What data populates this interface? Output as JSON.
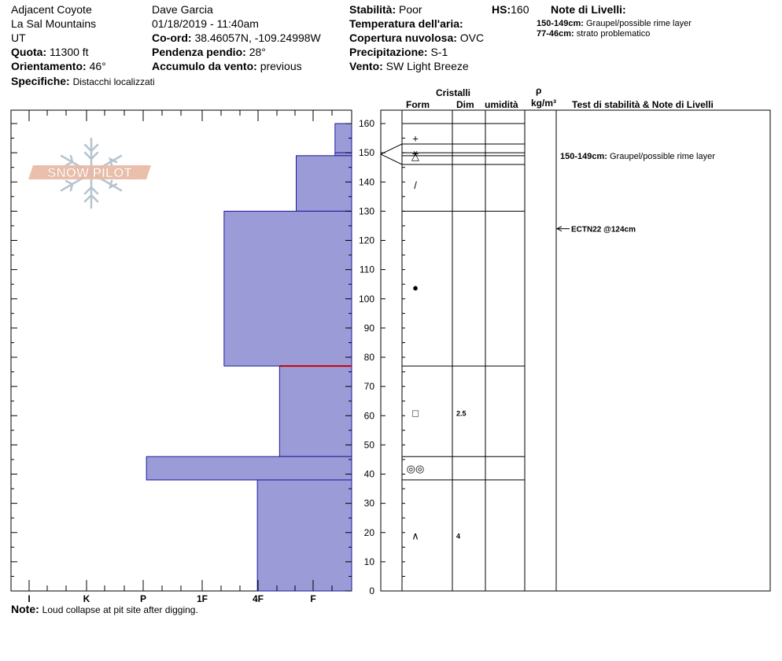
{
  "header": {
    "location": "Adjacent Coyote",
    "range": "La Sal Mountains",
    "state": "UT",
    "elevation_label": "Quota:",
    "elevation_value": "11300 ft",
    "aspect_label": "Orientamento:",
    "aspect_value": "46°",
    "specifics_label": "Specifiche:",
    "specifics_value": "Distacchi localizzati",
    "observer": "Dave Garcia",
    "datetime": "01/18/2019 - 11:40am",
    "coord_label": "Co-ord:",
    "coord_value": "38.46057N, -109.24998W",
    "slope_label": "Pendenza pendio:",
    "slope_value": "28°",
    "wind_loading_label": "Accumulo da vento:",
    "wind_loading_value": "previous",
    "stability_label": "Stabilità:",
    "stability_value": "Poor",
    "air_temp_label": "Temperatura dell'aria:",
    "air_temp_value": "",
    "cloud_label": "Copertura nuvolosa:",
    "cloud_value": "OVC",
    "precip_label": "Precipitazione:",
    "precip_value": "S-1",
    "wind_label": "Vento:",
    "wind_value": "SW Light Breeze",
    "hs_label": "HS:",
    "hs_value": "160",
    "layer_notes_title": "Note di Livelli:",
    "layer_notes": [
      {
        "range": "150-149cm:",
        "text": "Graupel/possible rime layer"
      },
      {
        "range": "77-46cm:",
        "text": "strato problematico"
      }
    ]
  },
  "logo_text": "SNOW PILOT",
  "column_headers": {
    "crystals": "Cristalli",
    "form": "Form",
    "size": "Dim",
    "moisture": "umidità",
    "rho": "ρ",
    "density_unit": "kg/m³",
    "stability_notes": "Test di stabilità & Note di Livelli"
  },
  "note_label": "Note:",
  "note_text": "Loud collapse at pit site after digging.",
  "colors": {
    "layer_fill": "#9b9bd7",
    "layer_stroke": "#1a1a9c",
    "weak_layer": "#cc0000",
    "logo_fill": "#e8b9a4",
    "logo_snowflake": "#b5c4cf"
  },
  "chart_data": {
    "type": "hardness_profile",
    "y_axis": {
      "min": 0,
      "max": 160,
      "ticks": [
        0,
        10,
        20,
        30,
        40,
        50,
        60,
        70,
        80,
        90,
        100,
        110,
        120,
        130,
        140,
        150,
        160
      ],
      "unit": "cm"
    },
    "hardness_scale": [
      "I",
      "K",
      "P",
      "1F",
      "4F",
      "F"
    ],
    "layers": [
      {
        "top": 160,
        "bottom": 150,
        "hardness_index": 0.3
      },
      {
        "top": 150,
        "bottom": 149,
        "hardness_index": 0.3
      },
      {
        "top": 149,
        "bottom": 130,
        "hardness_index": 1.0
      },
      {
        "top": 130,
        "bottom": 77,
        "hardness_index": 2.3
      },
      {
        "top": 77,
        "bottom": 46,
        "hardness_index": 1.3
      },
      {
        "top": 46,
        "bottom": 38,
        "hardness_index": 3.7
      },
      {
        "top": 38,
        "bottom": 0,
        "hardness_index": 1.7
      }
    ],
    "weak_layer_depth": 77,
    "boundaries": [
      160,
      150,
      149,
      130,
      77,
      46,
      38
    ],
    "crystals": [
      {
        "depth": 155,
        "symbol": "+",
        "size": ""
      },
      {
        "depth": 150,
        "symbol": "⚹",
        "size": ""
      },
      {
        "depth": 149,
        "symbol": "△",
        "size": ""
      },
      {
        "depth": 139,
        "symbol": "/",
        "size": ""
      },
      {
        "depth": 104,
        "symbol": "●",
        "size": ""
      },
      {
        "depth": 61,
        "symbol": "□",
        "size": "2.5"
      },
      {
        "depth": 42,
        "symbol": "◎◎",
        "size": ""
      },
      {
        "depth": 19,
        "symbol": "∧",
        "size": "4"
      }
    ],
    "stability_notes": [
      {
        "depth": 149,
        "range": "150-149cm:",
        "text": "Graupel/possible rime layer"
      },
      {
        "depth": 124,
        "range": "",
        "text": "ECTN22 @124cm"
      }
    ]
  }
}
